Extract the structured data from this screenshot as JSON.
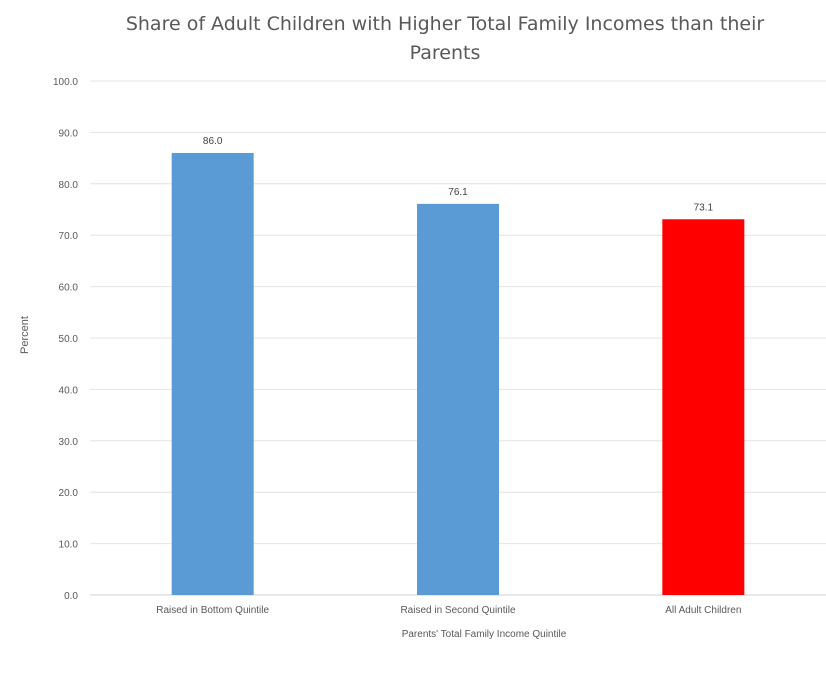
{
  "chart_data": {
    "type": "bar",
    "title": "Share of Adult Children with Higher Total Family Incomes than their Parents",
    "xlabel": "Parents' Total Family Income Quintile",
    "ylabel": "Percent",
    "categories": [
      "Raised in Bottom Quintile",
      "Raised in Second Quintile",
      "All Adult Children"
    ],
    "values": [
      86.0,
      76.1,
      73.1
    ],
    "data_labels": [
      "86.0",
      "76.1",
      "73.1"
    ],
    "bar_colors": [
      "#5B9BD5",
      "#5B9BD5",
      "#FF0000"
    ],
    "ylim": [
      0,
      100
    ],
    "yticks": [
      "0.0",
      "10.0",
      "20.0",
      "30.0",
      "40.0",
      "50.0",
      "60.0",
      "70.0",
      "80.0",
      "90.0",
      "100.0"
    ],
    "grid": true,
    "legend": "none"
  }
}
